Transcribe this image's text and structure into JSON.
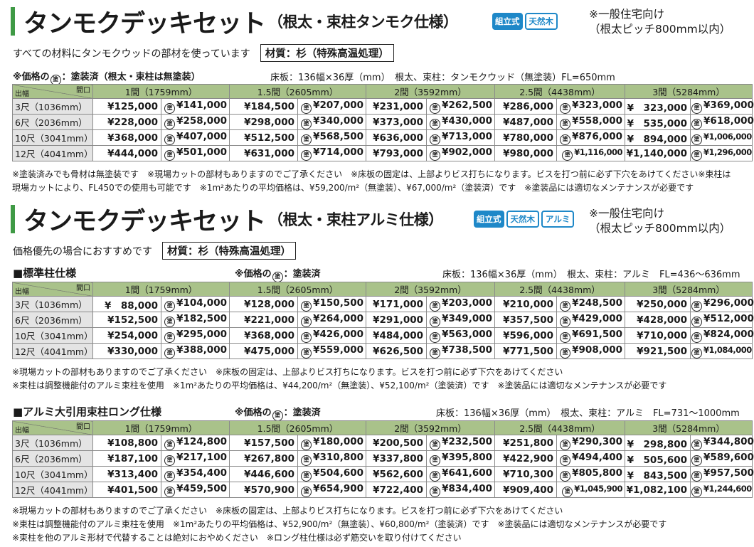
{
  "sec1": {
    "title_big": "タンモクデッキセット",
    "title_small": "（根太・束柱タンモク仕様）",
    "badges": [
      "組立式",
      "天然木"
    ],
    "aside": [
      "※一般住宅向け",
      "（根太ピッチ800mm以内）"
    ],
    "desc": "すべての材料にタンモクウッドの部材を使っています",
    "material": "材質：杉（特殊高温処理）",
    "price_note_a": "※価格の",
    "price_note_b": "：塗装済（根太・束柱は無塗装）",
    "spec": "床板：136幅×36厚（mm）　根太、束柱：タンモクウッド（無塗装）FL=650mm",
    "notes": [
      "※塗装済みでも骨材は無塗装です　※現場カットの部材もありますのでご了承ください　※床板の固定は、上部よりビス打ちになります。ビスを打つ前に必ず下穴をあけてください※束柱は",
      "現場カットにより、FL450での使用も可能です　※1m²あたりの平均価格は、¥59,200/m²（無塗装）、¥67,000/m²（塗装済）です　※塗装品には適切なメンテナンスが必要です"
    ],
    "rows": [
      {
        "label": "3尺（1036mm）",
        "cells": [
          "¥125,000",
          "¥141,000",
          "¥184,500",
          "¥207,000",
          "¥231,000",
          "¥262,500",
          "¥286,000",
          "¥323,000",
          "¥　323,000",
          "¥369,000"
        ]
      },
      {
        "label": "6尺（2036mm）",
        "cells": [
          "¥228,000",
          "¥258,000",
          "¥298,000",
          "¥340,000",
          "¥373,000",
          "¥430,000",
          "¥487,000",
          "¥558,000",
          "¥　535,000",
          "¥618,000"
        ]
      },
      {
        "label": "10尺（3041mm）",
        "cells": [
          "¥368,000",
          "¥407,000",
          "¥512,500",
          "¥568,500",
          "¥636,000",
          "¥713,000",
          "¥780,000",
          "¥876,000",
          "¥　894,000",
          "¥1,006,000"
        ]
      },
      {
        "label": "12尺（4041mm）",
        "cells": [
          "¥444,000",
          "¥501,000",
          "¥631,000",
          "¥714,000",
          "¥793,000",
          "¥902,000",
          "¥980,000",
          "¥1,116,000",
          "¥1,140,000",
          "¥1,296,000"
        ]
      }
    ]
  },
  "sec2": {
    "title_big": "タンモクデッキセット",
    "title_small": "（根太・束柱アルミ仕様）",
    "badges": [
      "組立式",
      "天然木",
      "アルミ"
    ],
    "aside": [
      "※一般住宅向け",
      "（根太ピッチ800mm以内）"
    ],
    "desc": "価格優先の場合におすすめです",
    "material": "材質：杉（特殊高温処理）"
  },
  "sec2a": {
    "heading": "■標準柱仕様",
    "price_note_a": "※価格の",
    "price_note_b": "：塗装済",
    "spec": "床板：136幅×36厚（mm）　根太、束柱：アルミ　FL=436～636mm",
    "notes": [
      "※現場カットの部材もありますのでご了承ください　※床板の固定は、上部よりビス打ちになります。ビスを打つ前に必ず下穴をあけてください",
      "※束柱は調整機能付のアルミ束柱を使用　※1m²あたりの平均価格は、¥44,200/m²（無塗装）、¥52,100/m²（塗装済）です　※塗装品には適切なメンテナンスが必要です"
    ],
    "rows": [
      {
        "label": "3尺（1036mm）",
        "cells": [
          "¥　88,000",
          "¥104,000",
          "¥128,000",
          "¥150,500",
          "¥171,000",
          "¥203,000",
          "¥210,000",
          "¥248,500",
          "¥250,000",
          "¥296,000"
        ]
      },
      {
        "label": "6尺（2036mm）",
        "cells": [
          "¥152,500",
          "¥182,500",
          "¥221,000",
          "¥264,000",
          "¥291,000",
          "¥349,000",
          "¥357,500",
          "¥429,000",
          "¥428,000",
          "¥512,000"
        ]
      },
      {
        "label": "10尺（3041mm）",
        "cells": [
          "¥254,000",
          "¥295,000",
          "¥368,000",
          "¥426,000",
          "¥484,000",
          "¥563,000",
          "¥596,000",
          "¥691,500",
          "¥710,000",
          "¥824,000"
        ]
      },
      {
        "label": "12尺（4041mm）",
        "cells": [
          "¥330,000",
          "¥388,000",
          "¥475,000",
          "¥559,000",
          "¥626,500",
          "¥738,500",
          "¥771,500",
          "¥908,000",
          "¥921,500",
          "¥1,084,000"
        ]
      }
    ]
  },
  "sec2b": {
    "heading": "■アルミ大引用束柱ロング仕様",
    "price_note_a": "※価格の",
    "price_note_b": "：塗装済",
    "spec": "床板：136幅×36厚（mm）　根太、束柱：アルミ　FL=731～1000mm",
    "notes": [
      "※現場カットの部材もありますのでご了承ください　※床板の固定は、上部よりビス打ちになります。ビスを打つ前に必ず下穴をあけてください",
      "※束柱は調整機能付のアルミ束柱を使用　※1m²あたりの平均価格は、¥52,900/m²（無塗装）、¥60,800/m²（塗装済）です　※塗装品には適切なメンテナンスが必要です",
      "※束柱を他のアルミ形材で代替することは絶対におやめください　※ロング柱仕様は必ず筋交いを取り付けてください"
    ],
    "rows": [
      {
        "label": "3尺（1036mm）",
        "cells": [
          "¥108,800",
          "¥124,800",
          "¥157,500",
          "¥180,000",
          "¥200,500",
          "¥232,500",
          "¥251,800",
          "¥290,300",
          "¥　298,800",
          "¥344,800"
        ]
      },
      {
        "label": "6尺（2036mm）",
        "cells": [
          "¥187,100",
          "¥217,100",
          "¥267,800",
          "¥310,800",
          "¥337,800",
          "¥395,800",
          "¥422,900",
          "¥494,400",
          "¥　505,600",
          "¥589,600"
        ]
      },
      {
        "label": "10尺（3041mm）",
        "cells": [
          "¥313,400",
          "¥354,400",
          "¥446,600",
          "¥504,600",
          "¥562,600",
          "¥641,600",
          "¥710,300",
          "¥805,800",
          "¥　843,500",
          "¥957,500"
        ]
      },
      {
        "label": "12尺（4041mm）",
        "cells": [
          "¥401,500",
          "¥459,500",
          "¥570,900",
          "¥654,900",
          "¥722,400",
          "¥834,400",
          "¥909,400",
          "¥1,045,900",
          "¥1,082,100",
          "¥1,244,600"
        ]
      }
    ]
  },
  "table_header": {
    "corner_depth": "出幅",
    "corner_width": "間口",
    "columns": [
      "1間（1759mm）",
      "1.5間（2605mm）",
      "2間（3592mm）",
      "2.5間（4438mm）",
      "3間（5284mm）"
    ]
  },
  "paint_symbol": "塗"
}
